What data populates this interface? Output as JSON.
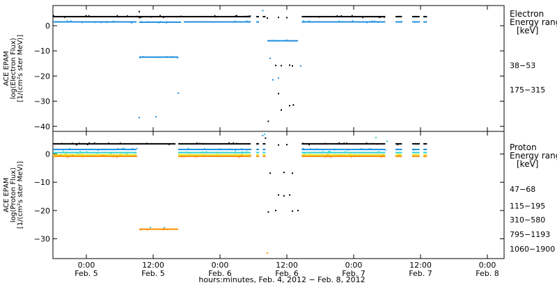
{
  "chart_data": [
    {
      "type": "scatter",
      "panel": "electron",
      "ylabel_lines": [
        "ACE EPAM",
        "log(Electron Flux)",
        "[1/(cm²s ster MeV)]"
      ],
      "ylim": [
        -42,
        8
      ],
      "yticks": [
        0,
        -10,
        -20,
        -30,
        -40
      ],
      "legend_title_lines": [
        "Electron",
        "Energy ranges",
        "[keV]"
      ],
      "legend_placement": "right",
      "series": [
        {
          "name": "38−53",
          "color": "#000000",
          "segments": [
            {
              "x": [
                "2012-02-04 18:00",
                "2012-02-06 05:30"
              ],
              "y": 3.6
            },
            {
              "x": [
                "2012-02-06 06:30",
                "2012-02-06 07:00"
              ],
              "y": 3.6
            },
            {
              "x": [
                "2012-02-06 07:40",
                "2012-02-06 08:10"
              ],
              "y": 3.6
            },
            {
              "x": [
                "2012-02-06 14:40",
                "2012-02-07 05:40"
              ],
              "y": 3.6
            },
            {
              "x": [
                "2012-02-07 07:30",
                "2012-02-07 08:40"
              ],
              "y": 3.6
            },
            {
              "x": [
                "2012-02-07 10:30",
                "2012-02-07 11:50"
              ],
              "y": 3.6
            },
            {
              "x": [
                "2012-02-07 12:30",
                "2012-02-07 13:10"
              ],
              "y": 3.6
            }
          ],
          "points": [
            {
              "x": "2012-02-05 09:30",
              "y": 5.6
            },
            {
              "x": "2012-02-06 08:30",
              "y": 3.0
            },
            {
              "x": "2012-02-06 10:30",
              "y": 3.3
            },
            {
              "x": "2012-02-06 12:00",
              "y": 3.2
            },
            {
              "x": "2012-02-06 10:00",
              "y": -15.8
            },
            {
              "x": "2012-02-06 11:00",
              "y": -15.9
            },
            {
              "x": "2012-02-06 12:30",
              "y": -15.7
            },
            {
              "x": "2012-02-06 13:00",
              "y": -16.0
            },
            {
              "x": "2012-02-06 10:30",
              "y": -27.0
            },
            {
              "x": "2012-02-06 11:00",
              "y": -33.5
            },
            {
              "x": "2012-02-06 12:30",
              "y": -31.8
            },
            {
              "x": "2012-02-06 13:10",
              "y": -31.5
            },
            {
              "x": "2012-02-06 08:40",
              "y": -38.0
            }
          ]
        },
        {
          "name": "175−315",
          "color": "#1f8fe0",
          "segments": [
            {
              "x": [
                "2012-02-04 18:00",
                "2012-02-05 09:00"
              ],
              "y": 1.5
            },
            {
              "x": [
                "2012-02-05 09:30",
                "2012-02-05 17:00"
              ],
              "y": 1.4
            },
            {
              "x": [
                "2012-02-05 17:30",
                "2012-02-06 05:30"
              ],
              "y": 1.5
            },
            {
              "x": [
                "2012-02-06 06:30",
                "2012-02-06 07:00"
              ],
              "y": 1.5
            },
            {
              "x": [
                "2012-02-06 14:40",
                "2012-02-07 05:40"
              ],
              "y": 1.5
            },
            {
              "x": [
                "2012-02-07 07:30",
                "2012-02-07 08:40"
              ],
              "y": 1.5
            },
            {
              "x": [
                "2012-02-07 10:30",
                "2012-02-07 11:50"
              ],
              "y": 1.5
            },
            {
              "x": [
                "2012-02-07 12:30",
                "2012-02-07 13:10"
              ],
              "y": 1.5
            },
            {
              "x": [
                "2012-02-05 09:30",
                "2012-02-05 16:30"
              ],
              "y": -12.5
            },
            {
              "x": [
                "2012-02-06 08:30",
                "2012-02-06 14:00"
              ],
              "y": -6.0
            }
          ],
          "points": [
            {
              "x": "2012-02-06 07:40",
              "y": 6.0
            },
            {
              "x": "2012-02-05 16:30",
              "y": -26.8
            },
            {
              "x": "2012-02-05 09:30",
              "y": -36.5
            },
            {
              "x": "2012-02-05 12:30",
              "y": -36.2
            },
            {
              "x": "2012-02-06 09:30",
              "y": -21.5
            },
            {
              "x": "2012-02-06 10:30",
              "y": -20.8
            },
            {
              "x": "2012-02-06 14:30",
              "y": -16.0
            },
            {
              "x": "2012-02-06 09:00",
              "y": -13.0
            }
          ]
        }
      ]
    },
    {
      "type": "scatter",
      "panel": "proton",
      "ylabel_lines": [
        "ACE EPAM",
        "log(Proton Flux)",
        "[1/(cm²s ster MeV)]"
      ],
      "ylim": [
        -37,
        8
      ],
      "yticks": [
        0,
        -10,
        -20,
        -30
      ],
      "legend_title_lines": [
        "Proton",
        "Energy ranges",
        "[keV]"
      ],
      "legend_placement": "right",
      "series": [
        {
          "name": "47−68",
          "color": "#000000",
          "segments": [
            {
              "x": [
                "2012-02-04 18:00",
                "2012-02-05 16:00"
              ],
              "y": 3.6
            },
            {
              "x": [
                "2012-02-05 16:30",
                "2012-02-06 05:30"
              ],
              "y": 3.6
            },
            {
              "x": [
                "2012-02-06 06:30",
                "2012-02-06 07:00"
              ],
              "y": 3.6
            },
            {
              "x": [
                "2012-02-06 07:40",
                "2012-02-06 08:10"
              ],
              "y": 3.6
            },
            {
              "x": [
                "2012-02-06 14:40",
                "2012-02-07 05:40"
              ],
              "y": 3.6
            },
            {
              "x": [
                "2012-02-07 07:30",
                "2012-02-07 08:40"
              ],
              "y": 3.6
            },
            {
              "x": [
                "2012-02-07 10:30",
                "2012-02-07 11:50"
              ],
              "y": 3.6
            },
            {
              "x": [
                "2012-02-07 12:30",
                "2012-02-07 13:10"
              ],
              "y": 3.6
            }
          ],
          "points": [
            {
              "x": "2012-02-06 08:10",
              "y": 5.6
            },
            {
              "x": "2012-02-06 10:30",
              "y": 3.2
            },
            {
              "x": "2012-02-06 12:00",
              "y": 3.3
            },
            {
              "x": "2012-02-06 09:00",
              "y": -6.8
            },
            {
              "x": "2012-02-06 11:30",
              "y": -6.5
            },
            {
              "x": "2012-02-06 13:00",
              "y": -6.8
            },
            {
              "x": "2012-02-06 10:30",
              "y": -14.5
            },
            {
              "x": "2012-02-06 11:30",
              "y": -14.8
            },
            {
              "x": "2012-02-06 12:30",
              "y": -14.5
            },
            {
              "x": "2012-02-06 10:00",
              "y": -20.0
            },
            {
              "x": "2012-02-06 13:00",
              "y": -20.2
            },
            {
              "x": "2012-02-06 14:00",
              "y": -20.0
            },
            {
              "x": "2012-02-06 08:40",
              "y": -20.5
            }
          ]
        },
        {
          "name": "115−195",
          "color": "#1f8fe0",
          "segments": [
            {
              "x": [
                "2012-02-04 18:00",
                "2012-02-05 09:00"
              ],
              "y": 1.6
            },
            {
              "x": [
                "2012-02-05 16:30",
                "2012-02-06 05:30"
              ],
              "y": 1.6
            },
            {
              "x": [
                "2012-02-06 06:30",
                "2012-02-06 07:00"
              ],
              "y": 1.6
            },
            {
              "x": [
                "2012-02-06 07:40",
                "2012-02-06 08:10"
              ],
              "y": 1.6
            },
            {
              "x": [
                "2012-02-06 14:40",
                "2012-02-07 05:40"
              ],
              "y": 1.6
            },
            {
              "x": [
                "2012-02-07 07:30",
                "2012-02-07 08:40"
              ],
              "y": 1.6
            },
            {
              "x": [
                "2012-02-07 10:30",
                "2012-02-07 11:50"
              ],
              "y": 1.6
            },
            {
              "x": [
                "2012-02-07 12:30",
                "2012-02-07 13:10"
              ],
              "y": 1.6
            }
          ],
          "points": [
            {
              "x": "2012-02-06 07:40",
              "y": 6.5
            }
          ]
        },
        {
          "name": "310−580",
          "color": "#2ed1d1",
          "segments": [
            {
              "x": [
                "2012-02-04 18:00",
                "2012-02-05 09:00"
              ],
              "y": 0.5
            },
            {
              "x": [
                "2012-02-05 16:30",
                "2012-02-06 05:30"
              ],
              "y": 0.5
            },
            {
              "x": [
                "2012-02-06 06:30",
                "2012-02-06 07:00"
              ],
              "y": 0.5
            },
            {
              "x": [
                "2012-02-06 07:40",
                "2012-02-06 08:10"
              ],
              "y": 0.5
            },
            {
              "x": [
                "2012-02-06 14:40",
                "2012-02-07 05:40"
              ],
              "y": 0.5
            },
            {
              "x": [
                "2012-02-07 07:30",
                "2012-02-07 08:40"
              ],
              "y": 0.5
            },
            {
              "x": [
                "2012-02-07 10:30",
                "2012-02-07 11:50"
              ],
              "y": 0.5
            },
            {
              "x": [
                "2012-02-07 12:30",
                "2012-02-07 13:10"
              ],
              "y": 0.5
            }
          ],
          "points": [
            {
              "x": "2012-02-07 04:00",
              "y": 5.8
            },
            {
              "x": "2012-02-07 06:00",
              "y": 4.5
            },
            {
              "x": "2012-02-06 08:00",
              "y": 7.0
            },
            {
              "x": "2012-02-05 11:30",
              "y": -26.0
            },
            {
              "x": "2012-02-05 14:00",
              "y": -26.0
            }
          ]
        },
        {
          "name": "795−1193",
          "color": "#e8e82a",
          "segments": [
            {
              "x": [
                "2012-02-04 18:00",
                "2012-02-05 09:00"
              ],
              "y": -0.3
            },
            {
              "x": [
                "2012-02-05 16:30",
                "2012-02-06 05:30"
              ],
              "y": -0.3
            },
            {
              "x": [
                "2012-02-06 06:30",
                "2012-02-06 07:00"
              ],
              "y": -0.3
            },
            {
              "x": [
                "2012-02-06 07:40",
                "2012-02-06 08:10"
              ],
              "y": -0.3
            },
            {
              "x": [
                "2012-02-06 14:40",
                "2012-02-07 05:40"
              ],
              "y": -0.3
            },
            {
              "x": [
                "2012-02-07 07:30",
                "2012-02-07 08:40"
              ],
              "y": -0.3
            },
            {
              "x": [
                "2012-02-07 10:30",
                "2012-02-07 11:50"
              ],
              "y": -0.3
            },
            {
              "x": [
                "2012-02-07 12:30",
                "2012-02-07 13:10"
              ],
              "y": -0.3
            }
          ],
          "points": []
        },
        {
          "name": "1060−1900",
          "color": "#ff8c00",
          "segments": [
            {
              "x": [
                "2012-02-04 18:00",
                "2012-02-05 09:00"
              ],
              "y": -0.8
            },
            {
              "x": [
                "2012-02-05 16:30",
                "2012-02-06 05:30"
              ],
              "y": -0.8
            },
            {
              "x": [
                "2012-02-06 06:30",
                "2012-02-06 07:00"
              ],
              "y": -0.8
            },
            {
              "x": [
                "2012-02-06 07:40",
                "2012-02-06 08:10"
              ],
              "y": -0.8
            },
            {
              "x": [
                "2012-02-06 14:40",
                "2012-02-07 05:40"
              ],
              "y": -0.8
            },
            {
              "x": [
                "2012-02-07 07:30",
                "2012-02-07 08:40"
              ],
              "y": -0.8
            },
            {
              "x": [
                "2012-02-07 10:30",
                "2012-02-07 11:50"
              ],
              "y": -0.8
            },
            {
              "x": [
                "2012-02-07 12:30",
                "2012-02-07 13:10"
              ],
              "y": -0.8
            },
            {
              "x": [
                "2012-02-05 09:30",
                "2012-02-05 16:30"
              ],
              "y": -26.6
            }
          ],
          "points": [
            {
              "x": "2012-02-06 08:30",
              "y": -35.0
            }
          ]
        }
      ]
    }
  ],
  "x_axis": {
    "range": [
      "2012-02-04 18:00",
      "2012-02-08 03:00"
    ],
    "ticks": [
      {
        "t": "2012-02-05 00:00",
        "time": "0:00",
        "date": "Feb. 5"
      },
      {
        "t": "2012-02-05 12:00",
        "time": "12:00",
        "date": "Feb. 5"
      },
      {
        "t": "2012-02-06 00:00",
        "time": "0:00",
        "date": "Feb. 6"
      },
      {
        "t": "2012-02-06 12:00",
        "time": "12:00",
        "date": "Feb. 6"
      },
      {
        "t": "2012-02-07 00:00",
        "time": "0:00",
        "date": "Feb. 7"
      },
      {
        "t": "2012-02-07 12:00",
        "time": "12:00",
        "date": "Feb. 7"
      },
      {
        "t": "2012-02-08 00:00",
        "time": "0:00",
        "date": "Feb. 8"
      }
    ],
    "label": "hours:minutes, Feb.  4, 2012 − Feb.  8, 2012"
  }
}
